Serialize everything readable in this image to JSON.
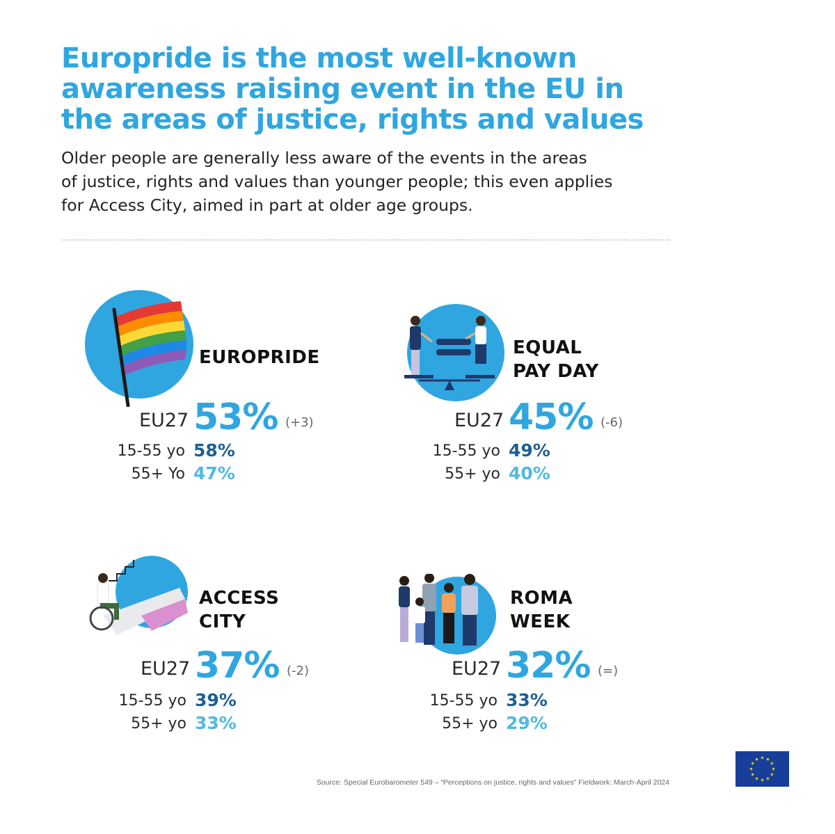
{
  "header": {
    "title_lines": [
      "Europride is the most well-known",
      "awareness raising event in the EU in",
      "the areas of justice, rights and values"
    ],
    "subtitle_lines": [
      "Older people are generally less aware of the events in the areas",
      "of justice, rights and values than younger people; this even applies",
      "for Access City, aimed in part at older age groups."
    ]
  },
  "events": [
    {
      "name_lines": [
        "",
        "EUROPRIDE"
      ],
      "eu_label": "EU27",
      "eu_value": "53%",
      "change": "(+3)",
      "young_label": "15-55 yo",
      "young_value": "58%",
      "old_label": "55+ Yo",
      "old_value": "47%",
      "illustration": "rainbow-flag"
    },
    {
      "name_lines": [
        "EQUAL",
        "PAY DAY"
      ],
      "eu_label": "EU27",
      "eu_value": "45%",
      "change": "(-6)",
      "young_label": "15-55 yo",
      "young_value": "49%",
      "old_label": "55+ yo",
      "old_value": "40%",
      "illustration": "equal-pay-scale"
    },
    {
      "name_lines": [
        "ACCESS",
        "CITY"
      ],
      "eu_label": "EU27",
      "eu_value": "37%",
      "change": "(-2)",
      "young_label": "15-55 yo",
      "young_value": "39%",
      "old_label": "55+ yo",
      "old_value": "33%",
      "illustration": "wheelchair-ramp"
    },
    {
      "name_lines": [
        "ROMA",
        "WEEK"
      ],
      "eu_label": "EU27",
      "eu_value": "32%",
      "change": "(=)",
      "young_label": "15-55 yo",
      "young_value": "33%",
      "old_label": "55+ yo",
      "old_value": "29%",
      "illustration": "group-of-people"
    }
  ],
  "footer": {
    "source": "Source: Special Eurobarometer 549 – “Perceptions on justice, rights and values” Fieldwork: March-April 2024",
    "logo": "eu-flag"
  },
  "colors": {
    "title": "#2fa6e0",
    "eu_value": "#2fa6e0",
    "young_value": "#1d5f94",
    "old_value": "#4fb9e6",
    "circle": "#2fa6e0",
    "eu_flag_blue": "#173f9a",
    "eu_flag_star": "#ffdd00"
  }
}
